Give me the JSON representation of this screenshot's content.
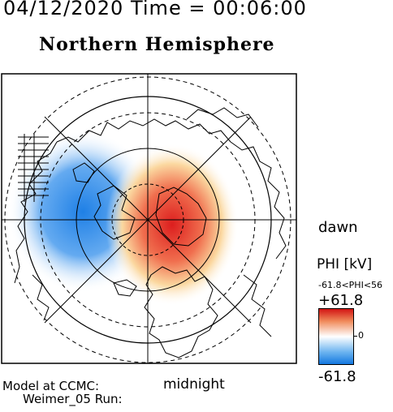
{
  "header": {
    "date": "04/12/2020",
    "time_word": "Time",
    "equals": "=",
    "time": "00:06:00"
  },
  "title": "Northern Hemisphere",
  "labels": {
    "dawn": "dawn",
    "midnight": "midnight",
    "model": "Model at CCMC:",
    "run": "Weimer_05 Run:"
  },
  "colorbar": {
    "title": "PHI [kV]",
    "range_text": "-61.8<PHI<56",
    "max_label": "+61.8",
    "zero_label": "0",
    "min_label": "-61.8",
    "colors": {
      "max": "#d21414",
      "mid": "#ffffff",
      "min": "#1478e0"
    }
  },
  "map": {
    "projection": "polar-stereographic",
    "potential_cells": [
      {
        "sign": "negative",
        "color": "#1478e0",
        "location": "dusk-side"
      },
      {
        "sign": "positive",
        "color": "#d21414",
        "location": "dawn-side"
      }
    ],
    "grid": "latitude circles and meridians"
  }
}
